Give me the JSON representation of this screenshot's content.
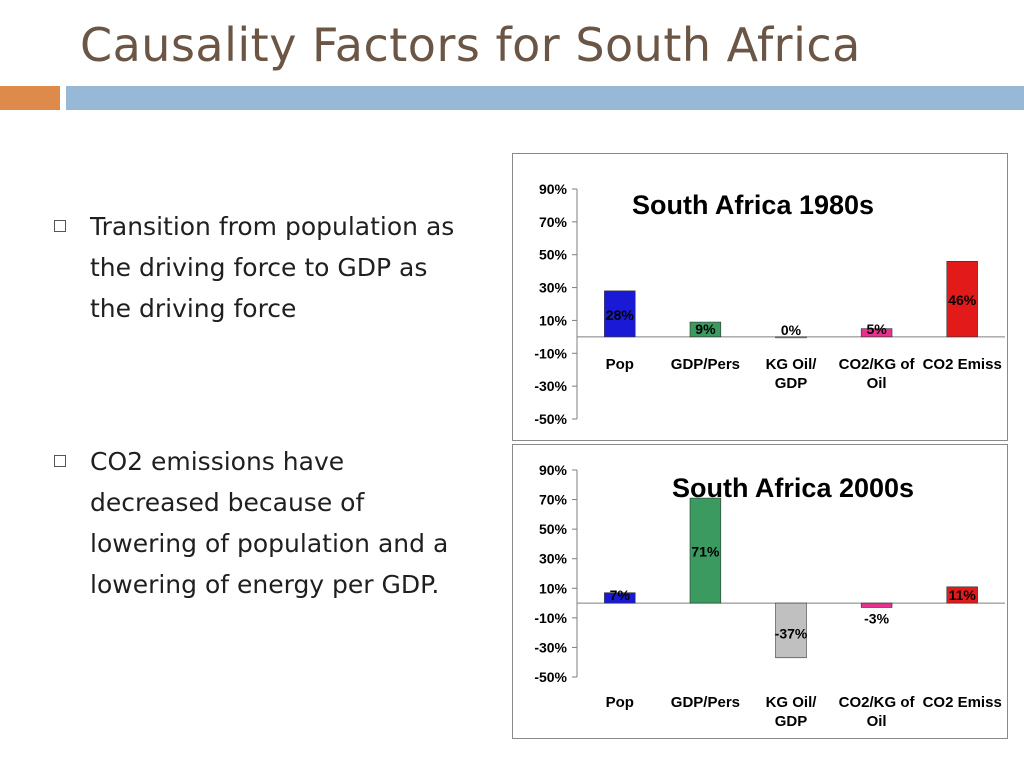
{
  "slide": {
    "title": "Causality Factors for South Africa",
    "bullets": [
      "Transition from population as the driving force to GDP as the driving force",
      "CO2 emissions have decreased because of lowering of population and a lowering of energy per GDP."
    ]
  },
  "chart_data": [
    {
      "type": "bar",
      "title": "South Africa 1980s",
      "categories": [
        "Pop",
        "GDP/Pers",
        "KG Oil/ GDP",
        "CO2/KG of Oil",
        "CO2 Emiss"
      ],
      "values": [
        28,
        9,
        0,
        5,
        46
      ],
      "data_labels": [
        "28%",
        "9%",
        "0%",
        "5%",
        "46%"
      ],
      "colors": [
        "#1a1ad6",
        "#3a9a60",
        "#c0c0c0",
        "#e8308e",
        "#e31a1a"
      ],
      "ylim": [
        -50,
        90
      ],
      "yticks": [
        "90%",
        "70%",
        "50%",
        "30%",
        "10%",
        "-10%",
        "-30%",
        "-50%"
      ],
      "ytick_values": [
        90,
        70,
        50,
        30,
        10,
        -10,
        -30,
        -50
      ],
      "xlabel": "",
      "ylabel": ""
    },
    {
      "type": "bar",
      "title": "South Africa 2000s",
      "categories": [
        "Pop",
        "GDP/Pers",
        "KG Oil/ GDP",
        "CO2/KG of Oil",
        "CO2 Emiss"
      ],
      "values": [
        7,
        71,
        -37,
        -3,
        11
      ],
      "data_labels": [
        "7%",
        "71%",
        "-37%",
        "-3%",
        "11%"
      ],
      "colors": [
        "#1a1ad6",
        "#3a9a60",
        "#c0c0c0",
        "#e8308e",
        "#e31a1a"
      ],
      "ylim": [
        -50,
        90
      ],
      "yticks": [
        "90%",
        "70%",
        "50%",
        "30%",
        "10%",
        "-10%",
        "-30%",
        "-50%"
      ],
      "ytick_values": [
        90,
        70,
        50,
        30,
        10,
        -10,
        -30,
        -50
      ],
      "xlabel": "",
      "ylabel": ""
    }
  ]
}
